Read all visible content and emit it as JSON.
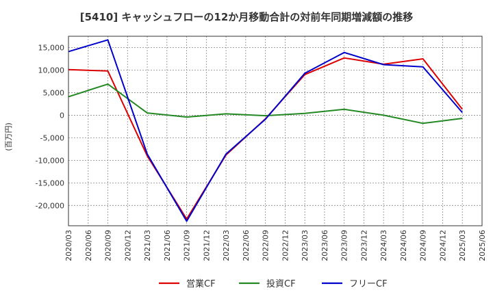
{
  "chart_data": {
    "type": "line",
    "title": "[5410]  キャッシュフローの12か月移動合計の対前年同期増減額の推移",
    "ylabel": "(百万円)",
    "xlabel": "",
    "ylim": [
      -24500,
      17500
    ],
    "yticks": [
      15000,
      10000,
      5000,
      0,
      -5000,
      -10000,
      -15000,
      -20000
    ],
    "ytick_labels": [
      "15,000",
      "10,000",
      "5,000",
      "0",
      "-5,000",
      "-10,000",
      "-15,000",
      "-20,000"
    ],
    "categories": [
      "2020/03",
      "2020/06",
      "2020/09",
      "2020/12",
      "2021/03",
      "2021/06",
      "2021/09",
      "2021/12",
      "2022/03",
      "2022/06",
      "2022/09",
      "2022/12",
      "2023/03",
      "2023/06",
      "2023/09",
      "2023/12",
      "2024/03",
      "2024/06",
      "2024/09",
      "2024/12",
      "2025/03",
      "2025/06"
    ],
    "grid": true,
    "legend_position": "bottom",
    "series": [
      {
        "name": "営業CF",
        "color": "#dd0000",
        "points": [
          [
            "2020/03",
            10100
          ],
          [
            "2020/09",
            9800
          ],
          [
            "2021/03",
            -9000
          ],
          [
            "2021/09",
            -23000
          ],
          [
            "2022/03",
            -8800
          ],
          [
            "2022/09",
            -800
          ],
          [
            "2023/03",
            9000
          ],
          [
            "2023/09",
            12700
          ],
          [
            "2024/03",
            11300
          ],
          [
            "2024/09",
            12500
          ],
          [
            "2025/03",
            1300
          ]
        ]
      },
      {
        "name": "投資CF",
        "color": "#228822",
        "points": [
          [
            "2020/03",
            4100
          ],
          [
            "2020/09",
            6900
          ],
          [
            "2021/03",
            500
          ],
          [
            "2021/09",
            -400
          ],
          [
            "2022/03",
            300
          ],
          [
            "2022/09",
            -100
          ],
          [
            "2023/03",
            400
          ],
          [
            "2023/09",
            1300
          ],
          [
            "2024/03",
            0
          ],
          [
            "2024/09",
            -1800
          ],
          [
            "2025/03",
            -700
          ]
        ]
      },
      {
        "name": "フリーCF",
        "color": "#0000cc",
        "points": [
          [
            "2020/03",
            14100
          ],
          [
            "2020/09",
            16700
          ],
          [
            "2021/03",
            -8600
          ],
          [
            "2021/09",
            -23500
          ],
          [
            "2022/03",
            -8600
          ],
          [
            "2022/09",
            -900
          ],
          [
            "2023/03",
            9300
          ],
          [
            "2023/09",
            13900
          ],
          [
            "2024/03",
            11200
          ],
          [
            "2024/09",
            10700
          ],
          [
            "2025/03",
            600
          ]
        ]
      }
    ]
  }
}
